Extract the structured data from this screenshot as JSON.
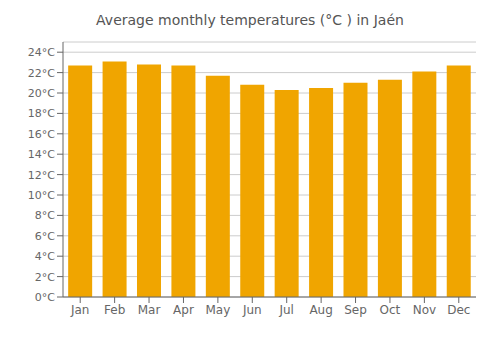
{
  "chart_data": {
    "type": "bar",
    "title": "Average monthly temperatures (°C ) in Jaén",
    "categories": [
      "Jan",
      "Feb",
      "Mar",
      "Apr",
      "May",
      "Jun",
      "Jul",
      "Aug",
      "Sep",
      "Oct",
      "Nov",
      "Dec"
    ],
    "values": [
      22.7,
      23.1,
      22.8,
      22.7,
      21.7,
      20.8,
      20.3,
      20.5,
      21.0,
      21.3,
      22.1,
      22.7
    ],
    "color": "#F0A500",
    "ylim": [
      0,
      25
    ],
    "yticks": [
      {
        "value": 0,
        "label": "0°C"
      },
      {
        "value": 2,
        "label": "2°C"
      },
      {
        "value": 4,
        "label": "4°C"
      },
      {
        "value": 6,
        "label": "6°C"
      },
      {
        "value": 8,
        "label": "8°C"
      },
      {
        "value": 10,
        "label": "10°C"
      },
      {
        "value": 12,
        "label": "12°C"
      },
      {
        "value": 14,
        "label": "14°C"
      },
      {
        "value": 16,
        "label": "16°C"
      },
      {
        "value": 18,
        "label": "18°C"
      },
      {
        "value": 20,
        "label": "20°C"
      },
      {
        "value": 22,
        "label": "22°C"
      },
      {
        "value": 24,
        "label": "24°C"
      }
    ],
    "grid": true
  }
}
